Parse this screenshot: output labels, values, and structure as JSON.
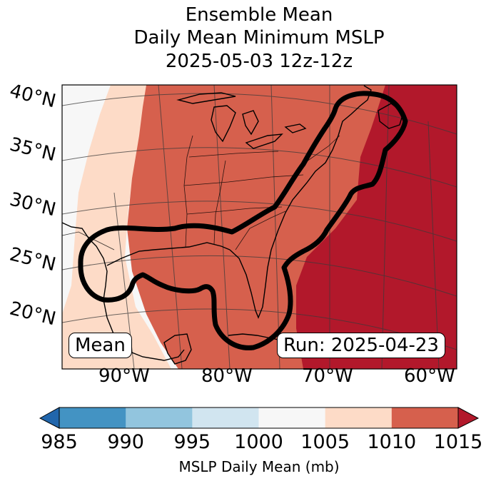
{
  "title": {
    "line1": "Ensemble Mean",
    "line2": "Daily Mean Minimum MSLP",
    "line3": "2025-05-03 12z-12z"
  },
  "map": {
    "lat_labels": [
      "40°N",
      "35°N",
      "30°N",
      "25°N",
      "20°N"
    ],
    "lon_labels": [
      "90°W",
      "80°W",
      "70°W",
      "60°W"
    ],
    "mean_box": "Mean",
    "run_box": "Run: 2025-04-23",
    "field_regions": [
      {
        "name": "western-gray",
        "value_range": "1000-1005",
        "color": "#f7f7f7"
      },
      {
        "name": "light-band",
        "value_range": "1005-1010",
        "color": "#fddbc7"
      },
      {
        "name": "central-main",
        "value_range": "1010-1015",
        "color": "#d6604d"
      },
      {
        "name": "eastern-high",
        "value_range": ">1015",
        "color": "#b2182b"
      }
    ],
    "contour_color": "#000000"
  },
  "colorbar": {
    "label": "MSLP Daily Mean (mb)",
    "ticks": [
      "985",
      "990",
      "995",
      "1000",
      "1005",
      "1010",
      "1015"
    ],
    "under_color": "#2166ac",
    "over_color": "#b2182b",
    "bins": [
      {
        "range": "985-990",
        "color": "#4393c3"
      },
      {
        "range": "990-995",
        "color": "#92c5de"
      },
      {
        "range": "995-1000",
        "color": "#d1e5f0"
      },
      {
        "range": "1000-1005",
        "color": "#f7f7f7"
      },
      {
        "range": "1005-1010",
        "color": "#fddbc7"
      },
      {
        "range": "1010-1015",
        "color": "#d6604d"
      }
    ]
  }
}
